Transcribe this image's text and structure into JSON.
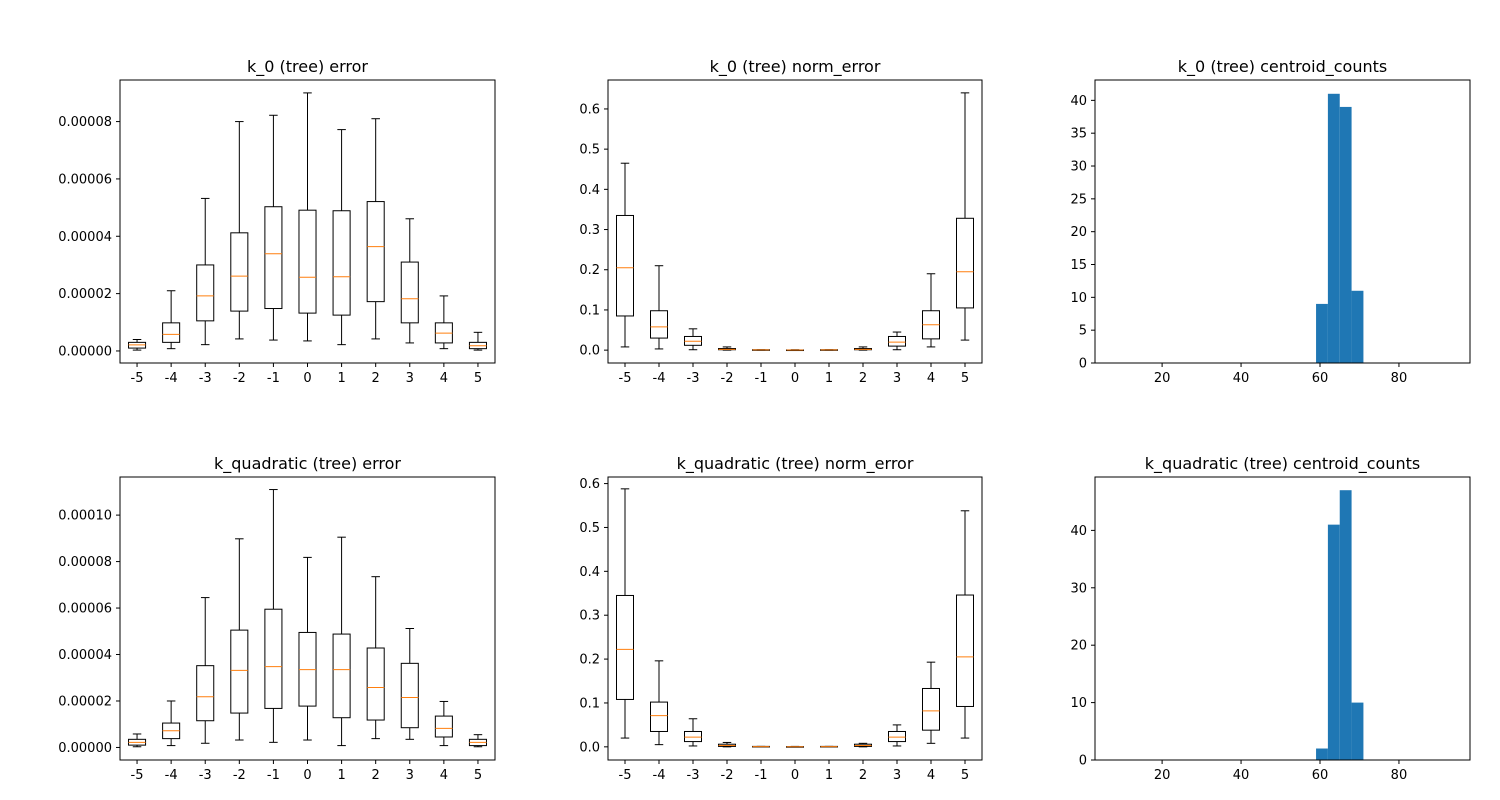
{
  "figure": {
    "rows": 2,
    "cols": 3
  },
  "colors": {
    "box": "#000000",
    "median": "#ff7f0e",
    "hist": "#1f77b4",
    "axis": "#000000",
    "background": "#ffffff"
  },
  "chart_data": [
    {
      "type": "box",
      "title": "k_0 (tree) error",
      "grid": false,
      "categories": [
        "-5",
        "-4",
        "-3",
        "-2",
        "-1",
        "0",
        "1",
        "2",
        "3",
        "4",
        "5"
      ],
      "ylim": [
        -4.2e-06,
        9.45e-05
      ],
      "yticks": [
        0,
        2e-05,
        4e-05,
        6e-05,
        8e-05
      ],
      "ytick_labels": [
        "0.00000",
        "0.00002",
        "0.00004",
        "0.00006",
        "0.00008"
      ],
      "boxes": [
        {
          "whislo": 3e-07,
          "q1": 1e-06,
          "med": 2.1e-06,
          "q3": 3e-06,
          "whishi": 4e-06
        },
        {
          "whislo": 8e-07,
          "q1": 3e-06,
          "med": 5.8e-06,
          "q3": 9.8e-06,
          "whishi": 2.1e-05
        },
        {
          "whislo": 2.2e-06,
          "q1": 1.05e-05,
          "med": 1.92e-05,
          "q3": 3e-05,
          "whishi": 5.32e-05
        },
        {
          "whislo": 4.2e-06,
          "q1": 1.39e-05,
          "med": 2.61e-05,
          "q3": 4.12e-05,
          "whishi": 8e-05
        },
        {
          "whislo": 3.8e-06,
          "q1": 1.48e-05,
          "med": 3.39e-05,
          "q3": 5.03e-05,
          "whishi": 8.22e-05
        },
        {
          "whislo": 3.5e-06,
          "q1": 1.32e-05,
          "med": 2.57e-05,
          "q3": 4.91e-05,
          "whishi": 9e-05
        },
        {
          "whislo": 2.2e-06,
          "q1": 1.25e-05,
          "med": 2.59e-05,
          "q3": 4.89e-05,
          "whishi": 7.72e-05
        },
        {
          "whislo": 4.2e-06,
          "q1": 1.72e-05,
          "med": 3.64e-05,
          "q3": 5.21e-05,
          "whishi": 8.1e-05
        },
        {
          "whislo": 2.8e-06,
          "q1": 9.8e-06,
          "med": 1.82e-05,
          "q3": 3.1e-05,
          "whishi": 4.61e-05
        },
        {
          "whislo": 8e-07,
          "q1": 2.8e-06,
          "med": 6.2e-06,
          "q3": 9.8e-06,
          "whishi": 1.92e-05
        },
        {
          "whislo": 3e-07,
          "q1": 8e-07,
          "med": 1.8e-06,
          "q3": 3e-06,
          "whishi": 6.5e-06
        }
      ]
    },
    {
      "type": "box",
      "title": "k_0 (tree) norm_error",
      "grid": false,
      "categories": [
        "-5",
        "-4",
        "-3",
        "-2",
        "-1",
        "0",
        "1",
        "2",
        "3",
        "4",
        "5"
      ],
      "ylim": [
        -0.032,
        0.672
      ],
      "yticks": [
        0,
        0.1,
        0.2,
        0.3,
        0.4,
        0.5,
        0.6
      ],
      "ytick_labels": [
        "0.0",
        "0.1",
        "0.2",
        "0.3",
        "0.4",
        "0.5",
        "0.6"
      ],
      "boxes": [
        {
          "whislo": 0.008,
          "q1": 0.085,
          "med": 0.205,
          "q3": 0.335,
          "whishi": 0.465
        },
        {
          "whislo": 0.003,
          "q1": 0.03,
          "med": 0.058,
          "q3": 0.098,
          "whishi": 0.21
        },
        {
          "whislo": 0.001,
          "q1": 0.012,
          "med": 0.022,
          "q3": 0.034,
          "whishi": 0.053
        },
        {
          "whislo": 0.0,
          "q1": 0.001,
          "med": 0.002,
          "q3": 0.004,
          "whishi": 0.008
        },
        {
          "whislo": 0.0,
          "q1": 0.0,
          "med": 0.0005,
          "q3": 0.001,
          "whishi": 0.001
        },
        {
          "whislo": 0.0,
          "q1": 0.0,
          "med": 0.0002,
          "q3": 0.0005,
          "whishi": 0.001
        },
        {
          "whislo": 0.0,
          "q1": 0.0,
          "med": 0.0005,
          "q3": 0.001,
          "whishi": 0.001
        },
        {
          "whislo": 0.0,
          "q1": 0.001,
          "med": 0.002,
          "q3": 0.004,
          "whishi": 0.008
        },
        {
          "whislo": 0.001,
          "q1": 0.01,
          "med": 0.02,
          "q3": 0.034,
          "whishi": 0.045
        },
        {
          "whislo": 0.008,
          "q1": 0.028,
          "med": 0.063,
          "q3": 0.098,
          "whishi": 0.19
        },
        {
          "whislo": 0.025,
          "q1": 0.105,
          "med": 0.195,
          "q3": 0.328,
          "whishi": 0.64
        }
      ]
    },
    {
      "type": "histogram",
      "title": "k_0 (tree) centroid_counts",
      "grid": false,
      "xlim": [
        3,
        98
      ],
      "ylim": [
        0,
        43.1
      ],
      "xticks": [
        20,
        40,
        60,
        80
      ],
      "xtick_labels": [
        "20",
        "40",
        "60",
        "80"
      ],
      "yticks": [
        0,
        5,
        10,
        15,
        20,
        25,
        30,
        35,
        40
      ],
      "ytick_labels": [
        "0",
        "5",
        "10",
        "15",
        "20",
        "25",
        "30",
        "35",
        "40"
      ],
      "bins": [
        {
          "x0": 59,
          "x1": 62,
          "count": 9
        },
        {
          "x0": 62,
          "x1": 65,
          "count": 41
        },
        {
          "x0": 65,
          "x1": 68,
          "count": 39
        },
        {
          "x0": 68,
          "x1": 71,
          "count": 11
        }
      ]
    },
    {
      "type": "box",
      "title": "k_quadratic (tree) error",
      "grid": false,
      "categories": [
        "-5",
        "-4",
        "-3",
        "-2",
        "-1",
        "0",
        "1",
        "2",
        "3",
        "4",
        "5"
      ],
      "ylim": [
        -5.4e-06,
        0.0001164
      ],
      "yticks": [
        0,
        2e-05,
        4e-05,
        6e-05,
        8e-05,
        0.0001
      ],
      "ytick_labels": [
        "0.00000",
        "0.00002",
        "0.00004",
        "0.00006",
        "0.00008",
        "0.00010"
      ],
      "boxes": [
        {
          "whislo": 3e-07,
          "q1": 1e-06,
          "med": 2.2e-06,
          "q3": 3.5e-06,
          "whishi": 5.8e-06
        },
        {
          "whislo": 8e-07,
          "q1": 3.8e-06,
          "med": 7.2e-06,
          "q3": 1.05e-05,
          "whishi": 2e-05
        },
        {
          "whislo": 1.8e-06,
          "q1": 1.15e-05,
          "med": 2.18e-05,
          "q3": 3.52e-05,
          "whishi": 6.45e-05
        },
        {
          "whislo": 3.2e-06,
          "q1": 1.48e-05,
          "med": 3.32e-05,
          "q3": 5.05e-05,
          "whishi": 8.98e-05
        },
        {
          "whislo": 2.2e-06,
          "q1": 1.68e-05,
          "med": 3.48e-05,
          "q3": 5.95e-05,
          "whishi": 0.000111
        },
        {
          "whislo": 3.2e-06,
          "q1": 1.78e-05,
          "med": 3.35e-05,
          "q3": 4.95e-05,
          "whishi": 8.18e-05
        },
        {
          "whislo": 8e-07,
          "q1": 1.28e-05,
          "med": 3.35e-05,
          "q3": 4.88e-05,
          "whishi": 9.05e-05
        },
        {
          "whislo": 3.8e-06,
          "q1": 1.18e-05,
          "med": 2.58e-05,
          "q3": 4.28e-05,
          "whishi": 7.35e-05
        },
        {
          "whislo": 3.5e-06,
          "q1": 8.5e-06,
          "med": 2.15e-05,
          "q3": 3.62e-05,
          "whishi": 5.12e-05
        },
        {
          "whislo": 8e-07,
          "q1": 4.5e-06,
          "med": 8.2e-06,
          "q3": 1.35e-05,
          "whishi": 1.98e-05
        },
        {
          "whislo": 3e-07,
          "q1": 8e-07,
          "med": 2.2e-06,
          "q3": 3.5e-06,
          "whishi": 5.5e-06
        }
      ]
    },
    {
      "type": "box",
      "title": "k_quadratic (tree) norm_error",
      "grid": false,
      "categories": [
        "-5",
        "-4",
        "-3",
        "-2",
        "-1",
        "0",
        "1",
        "2",
        "3",
        "4",
        "5"
      ],
      "ylim": [
        -0.03,
        0.615
      ],
      "yticks": [
        0,
        0.1,
        0.2,
        0.3,
        0.4,
        0.5,
        0.6
      ],
      "ytick_labels": [
        "0.0",
        "0.1",
        "0.2",
        "0.3",
        "0.4",
        "0.5",
        "0.6"
      ],
      "boxes": [
        {
          "whislo": 0.02,
          "q1": 0.108,
          "med": 0.222,
          "q3": 0.345,
          "whishi": 0.588
        },
        {
          "whislo": 0.005,
          "q1": 0.035,
          "med": 0.071,
          "q3": 0.102,
          "whishi": 0.196
        },
        {
          "whislo": 0.002,
          "q1": 0.012,
          "med": 0.022,
          "q3": 0.035,
          "whishi": 0.064
        },
        {
          "whislo": 0.0,
          "q1": 0.001,
          "med": 0.003,
          "q3": 0.006,
          "whishi": 0.01
        },
        {
          "whislo": 0.0,
          "q1": 0.0,
          "med": 0.0005,
          "q3": 0.001,
          "whishi": 0.001
        },
        {
          "whislo": 0.0,
          "q1": 0.0,
          "med": 0.0003,
          "q3": 0.0005,
          "whishi": 0.001
        },
        {
          "whislo": 0.0,
          "q1": 0.0,
          "med": 0.0005,
          "q3": 0.001,
          "whishi": 0.001
        },
        {
          "whislo": 0.0,
          "q1": 0.001,
          "med": 0.003,
          "q3": 0.006,
          "whishi": 0.008
        },
        {
          "whislo": 0.002,
          "q1": 0.012,
          "med": 0.022,
          "q3": 0.035,
          "whishi": 0.05
        },
        {
          "whislo": 0.008,
          "q1": 0.038,
          "med": 0.082,
          "q3": 0.133,
          "whishi": 0.193
        },
        {
          "whislo": 0.02,
          "q1": 0.092,
          "med": 0.205,
          "q3": 0.346,
          "whishi": 0.538
        }
      ]
    },
    {
      "type": "histogram",
      "title": "k_quadratic (tree) centroid_counts",
      "grid": false,
      "xlim": [
        3,
        98
      ],
      "ylim": [
        0,
        49.3
      ],
      "xticks": [
        20,
        40,
        60,
        80
      ],
      "xtick_labels": [
        "20",
        "40",
        "60",
        "80"
      ],
      "yticks": [
        0,
        10,
        20,
        30,
        40
      ],
      "ytick_labels": [
        "0",
        "10",
        "20",
        "30",
        "40"
      ],
      "bins": [
        {
          "x0": 59,
          "x1": 62,
          "count": 2
        },
        {
          "x0": 62,
          "x1": 65,
          "count": 41
        },
        {
          "x0": 65,
          "x1": 68,
          "count": 47
        },
        {
          "x0": 68,
          "x1": 71,
          "count": 10
        }
      ]
    }
  ]
}
